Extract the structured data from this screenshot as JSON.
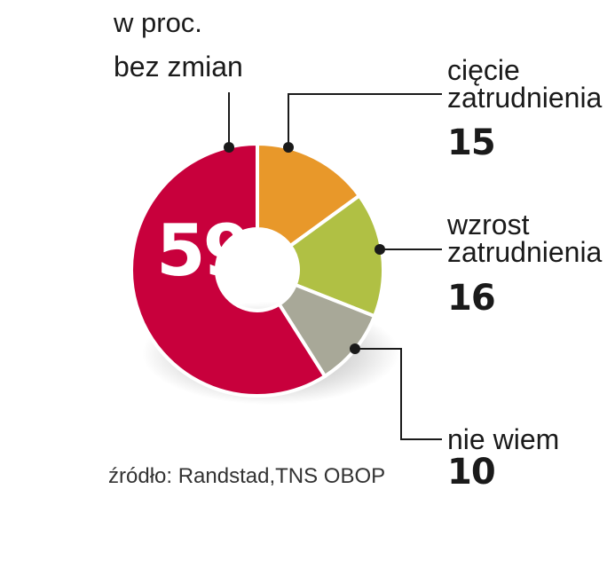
{
  "unit_label": "w proc.",
  "source": "źródło: Randstad,TNS OBOP",
  "colors": {
    "bez_zmian": "#c8003c",
    "ciecie": "#e8982a",
    "wzrost": "#b0c044",
    "nie_wiem": "#a8a898",
    "leader": "#1a1a1a"
  },
  "chart_data": {
    "type": "pie",
    "donut": true,
    "categories": [
      "bez zmian",
      "cięcie zatrudnienia",
      "wzrost zatrudnienia",
      "nie wiem"
    ],
    "values": [
      59,
      15,
      16,
      10
    ],
    "labels": {
      "bez_zmian": "bez zmian",
      "ciecie": [
        "cięcie",
        "zatrudnienia"
      ],
      "wzrost": [
        "wzrost",
        "zatrudnienia"
      ],
      "nie_wiem": "nie wiem"
    },
    "values_text": {
      "bez_zmian": "59",
      "ciecie": "15",
      "wzrost": "16",
      "nie_wiem": "10"
    }
  }
}
